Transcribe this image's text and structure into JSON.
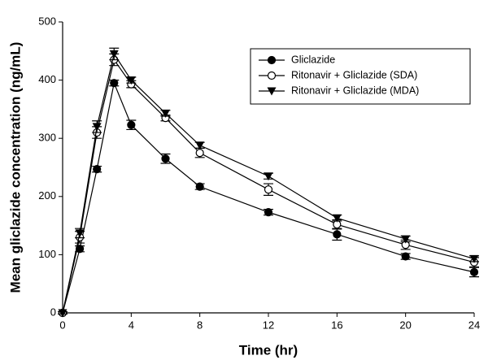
{
  "chart_data": {
    "type": "line",
    "x_label": "Time (hr)",
    "y_label": "Mean gliclazide concentration (ng/mL)",
    "x": [
      0,
      1,
      2,
      3,
      4,
      6,
      8,
      12,
      16,
      20,
      24
    ],
    "series": [
      {
        "name": "Gliclazide",
        "color": "#000000",
        "marker": "filled-circle",
        "values": [
          0,
          110,
          247,
          395,
          323,
          265,
          217,
          173,
          135,
          97,
          70
        ],
        "errors": [
          2,
          5,
          5,
          5,
          8,
          8,
          5,
          5,
          10,
          5,
          8
        ]
      },
      {
        "name": "Ritonavir + Gliclazide (SDA)",
        "color": "#000000",
        "marker": "open-circle",
        "values": [
          0,
          130,
          310,
          435,
          393,
          335,
          275,
          212,
          152,
          117,
          87
        ],
        "errors": [
          2,
          10,
          10,
          10,
          6,
          5,
          8,
          10,
          8,
          8,
          8
        ]
      },
      {
        "name": "Ritonavir + Gliclazide (MDA)",
        "color": "#000000",
        "marker": "filled-triangle-down",
        "values": [
          0,
          137,
          320,
          445,
          400,
          343,
          288,
          235,
          163,
          127,
          93
        ],
        "errors": [
          2,
          8,
          10,
          10,
          5,
          5,
          5,
          5,
          5,
          5,
          5
        ]
      }
    ],
    "xlim": [
      0,
      24
    ],
    "xticks": [
      0,
      4,
      8,
      12,
      16,
      20,
      24
    ],
    "ylim": [
      0,
      500
    ],
    "yticks": [
      0,
      100,
      200,
      300,
      400,
      500
    ],
    "legend": "upper right"
  }
}
